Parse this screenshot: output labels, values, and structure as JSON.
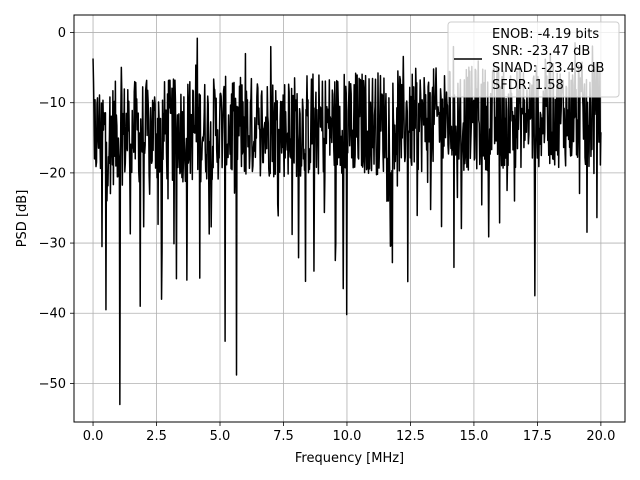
{
  "chart_data": {
    "type": "line",
    "xlabel": "Frequency [MHz]",
    "ylabel": "PSD [dB]",
    "xlim": [
      -0.75,
      20.95
    ],
    "ylim": [
      -55.5,
      2.5
    ],
    "xticks": [
      0.0,
      2.5,
      5.0,
      7.5,
      10.0,
      12.5,
      15.0,
      17.5,
      20.0
    ],
    "xtick_labels": [
      "0.0",
      "2.5",
      "5.0",
      "7.5",
      "10.0",
      "12.5",
      "15.0",
      "17.5",
      "20.0"
    ],
    "yticks": [
      0,
      -10,
      -20,
      -30,
      -40,
      -50
    ],
    "ytick_labels": [
      "0",
      "−10",
      "−20",
      "−30",
      "−40",
      "−50"
    ],
    "grid": true,
    "legend_placement": "top-right",
    "series": [
      {
        "name": "ENOB: -4.19 bits\nSNR: -23.47 dB\nSINAD: -23.49 dB\nSFDR: 1.58",
        "color": "#000000",
        "x_start": 0.0,
        "x_end": 20.0,
        "approx_points": 1024,
        "typical_range_db": [
          -22,
          -7
        ],
        "notable_points": [
          {
            "x": 0.0,
            "y": -3.7
          },
          {
            "x": 0.05,
            "y": -18.0
          },
          {
            "x": 0.35,
            "y": -30.5
          },
          {
            "x": 0.5,
            "y": -39.5
          },
          {
            "x": 1.05,
            "y": -53.0
          },
          {
            "x": 1.85,
            "y": -39.0
          },
          {
            "x": 2.7,
            "y": -38.0
          },
          {
            "x": 4.2,
            "y": -35.0
          },
          {
            "x": 5.2,
            "y": -44.0
          },
          {
            "x": 5.65,
            "y": -48.8
          },
          {
            "x": 6.0,
            "y": -3.0
          },
          {
            "x": 7.0,
            "y": -2.0
          },
          {
            "x": 8.7,
            "y": -34.0
          },
          {
            "x": 9.85,
            "y": -36.5
          },
          {
            "x": 10.0,
            "y": -40.2
          },
          {
            "x": 12.4,
            "y": -35.5
          },
          {
            "x": 14.2,
            "y": -2.0
          },
          {
            "x": 17.4,
            "y": -37.5
          },
          {
            "x": 18.0,
            "y": -3.0
          }
        ]
      }
    ],
    "legend_lines": [
      "ENOB: -4.19 bits",
      "SNR: -23.47 dB",
      "SINAD: -23.49 dB",
      "SFDR: 1.58"
    ]
  }
}
